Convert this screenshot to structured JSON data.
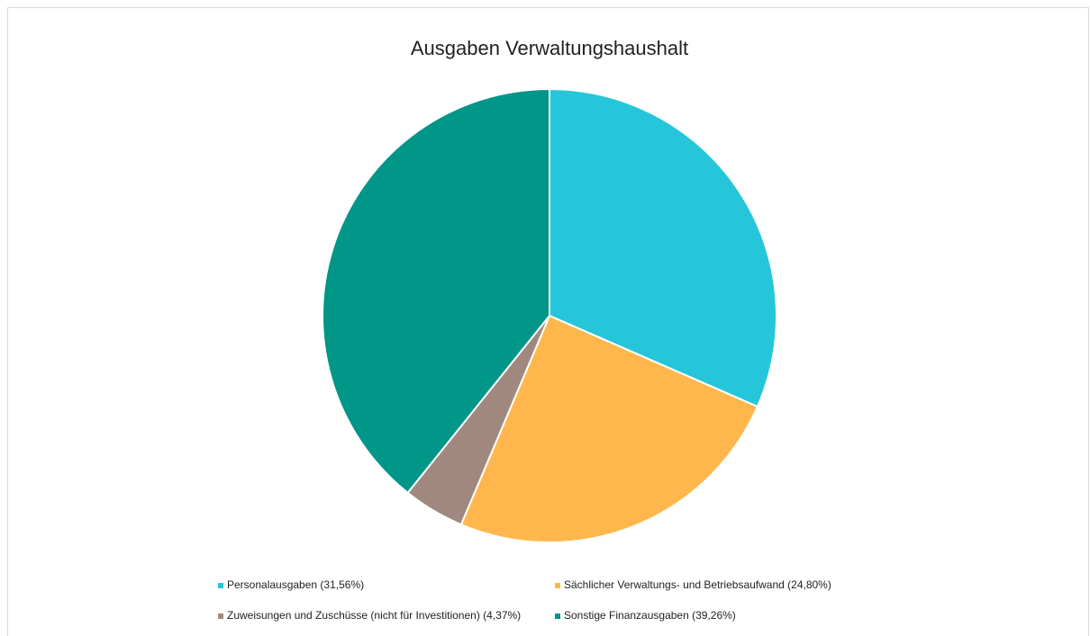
{
  "chart_data": {
    "type": "pie",
    "title": "Ausgaben Verwaltungshaushalt",
    "categories": [
      "Personalausgaben (31,56%)",
      "Sächlicher Verwaltungs- und Betriebsaufwand (24,80%)",
      "Zuweisungen und Zuschüsse (nicht für Investitionen) (4,37%)",
      "Sonstige Finanzausgaben (39,26%)"
    ],
    "values": [
      31.56,
      24.8,
      4.37,
      39.26
    ],
    "colors": [
      "#26c6da",
      "#ffb74d",
      "#a1887f",
      "#009688"
    ],
    "legend": "bottom"
  }
}
